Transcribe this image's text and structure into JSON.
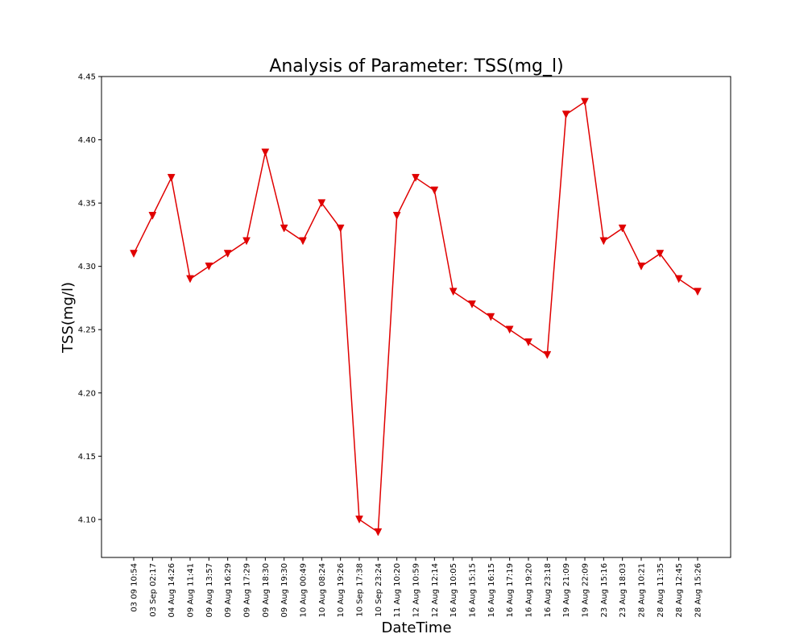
{
  "chart_data": {
    "type": "line",
    "title": "Analysis of Parameter: TSS(mg_l)",
    "xlabel": "DateTime",
    "ylabel": "TSS(mg/l)",
    "ylim": [
      4.07,
      4.45
    ],
    "yticks": [
      "4.10",
      "4.15",
      "4.20",
      "4.25",
      "4.30",
      "4.35",
      "4.40",
      "4.45"
    ],
    "grid": false,
    "marker": "triangle-down",
    "color": "#e00000",
    "categories": [
      "03 09 10:54",
      "03 Sep 02:17",
      "04 Aug 14:26",
      "09 Aug 11:41",
      "09 Aug 13:57",
      "09 Aug 16:29",
      "09 Aug 17:29",
      "09 Aug 18:30",
      "09 Aug 19:30",
      "10 Aug 00:49",
      "10 Aug 08:24",
      "10 Aug 19:26",
      "10 Sep 17:38",
      "10 Sep 23:24",
      "11 Aug 10:20",
      "12 Aug 10:59",
      "12 Aug 12:14",
      "16 Aug 10:05",
      "16 Aug 15:15",
      "16 Aug 16:15",
      "16 Aug 17:19",
      "16 Aug 19:20",
      "16 Aug 23:18",
      "19 Aug 21:09",
      "19 Aug 22:09",
      "23 Aug 15:16",
      "23 Aug 18:03",
      "28 Aug 10:21",
      "28 Aug 11:35",
      "28 Aug 12:45",
      "28 Aug 15:26"
    ],
    "values": [
      4.31,
      4.34,
      4.37,
      4.29,
      4.3,
      4.31,
      4.32,
      4.39,
      4.33,
      4.32,
      4.35,
      4.33,
      4.1,
      4.09,
      4.34,
      4.37,
      4.36,
      4.28,
      4.27,
      4.26,
      4.25,
      4.24,
      4.23,
      4.42,
      4.43,
      4.32,
      4.33,
      4.3,
      4.31,
      4.29,
      4.28
    ]
  }
}
